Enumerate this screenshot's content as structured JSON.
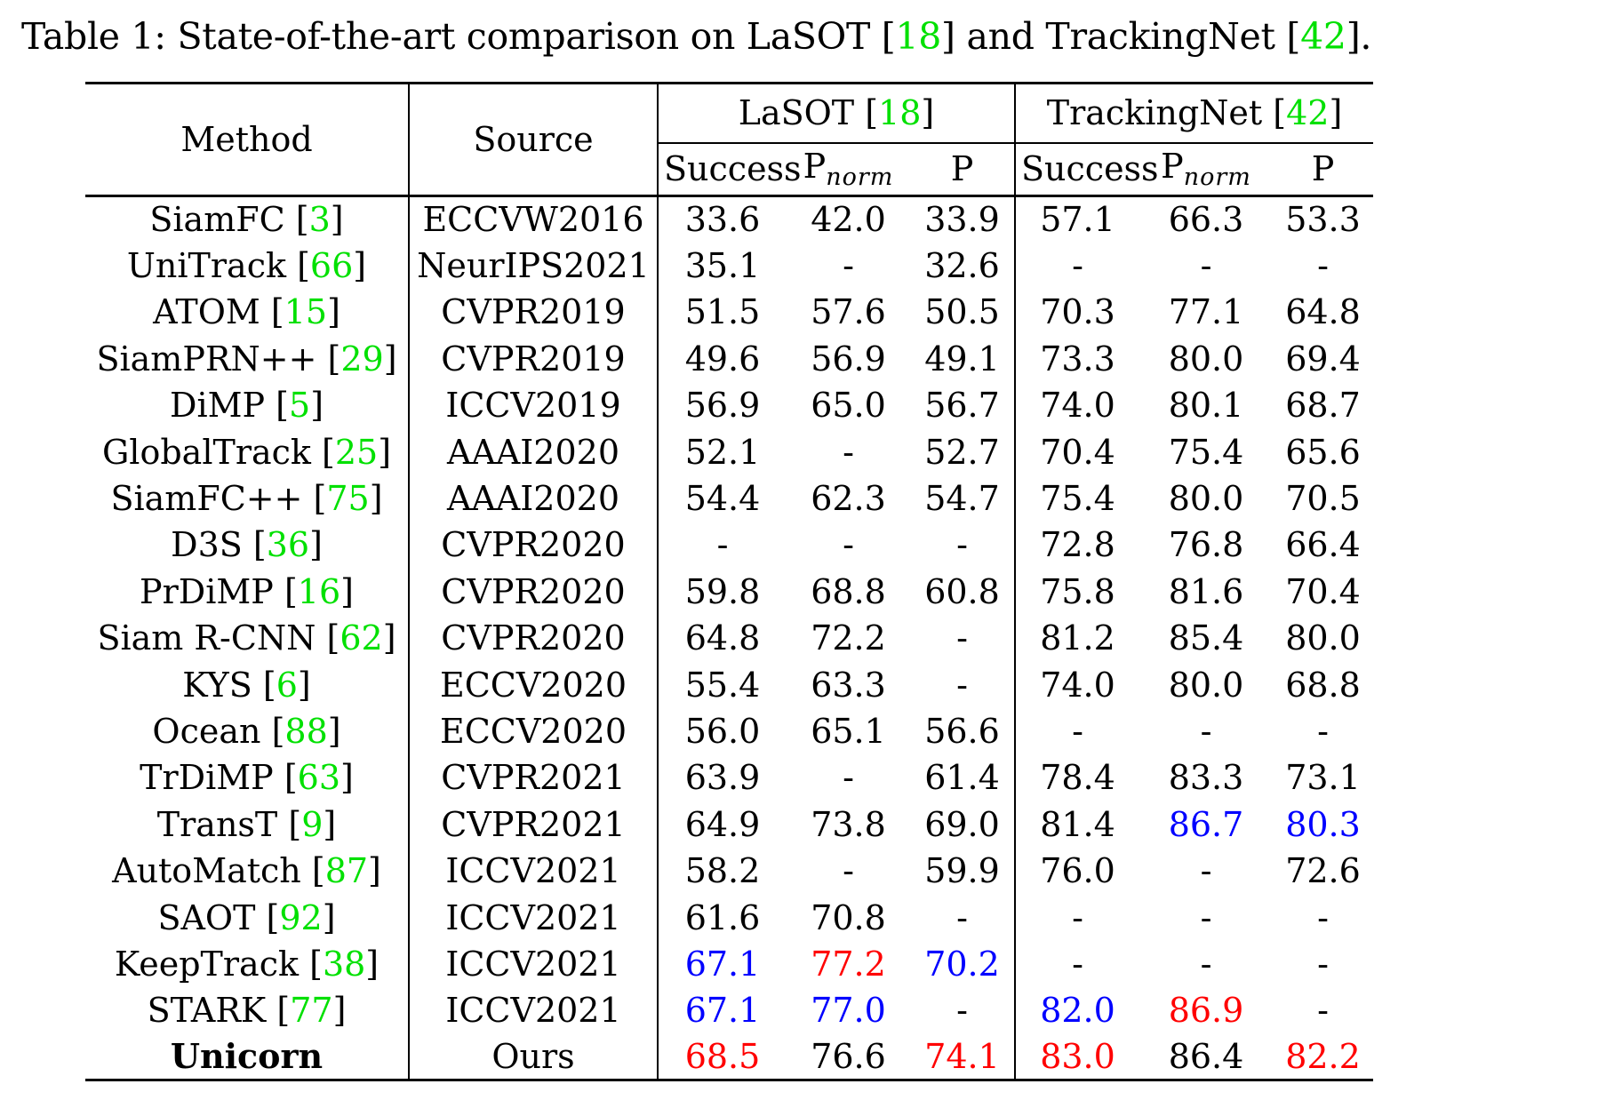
{
  "caption": {
    "prefix": "Table 1: State-of-the-art comparison on LaSOT ",
    "ref1_open": "[",
    "ref1": "18",
    "ref1_close": "]",
    "middle": " and TrackingNet ",
    "ref2_open": "[",
    "ref2": "42",
    "ref2_close": "].",
    "full_text": "Table 1: State-of-the-art comparison on LaSOT [18] and TrackingNet [42]."
  },
  "header": {
    "method": "Method",
    "source": "Source",
    "lasot": {
      "name": "LaSOT ",
      "ref": "18"
    },
    "trackingnet": {
      "name": "TrackingNet ",
      "ref": "42"
    },
    "metrics": {
      "success": "Success",
      "pnorm_base": "P",
      "pnorm_sub": "norm",
      "p": "P"
    }
  },
  "colors": {
    "citation": "#00e000",
    "best": "#ff0000",
    "second": "#0000ff"
  },
  "rows": [
    {
      "method": "SiamFC ",
      "ref": "3",
      "source": "ECCVW2016",
      "cells": [
        {
          "v": "33.6"
        },
        {
          "v": "42.0"
        },
        {
          "v": "33.9"
        },
        {
          "v": "57.1"
        },
        {
          "v": "66.3"
        },
        {
          "v": "53.3"
        }
      ]
    },
    {
      "method": "UniTrack ",
      "ref": "66",
      "source": "NeurIPS2021",
      "cells": [
        {
          "v": "35.1"
        },
        {
          "v": "-"
        },
        {
          "v": "32.6"
        },
        {
          "v": "-"
        },
        {
          "v": "-"
        },
        {
          "v": "-"
        }
      ]
    },
    {
      "method": "ATOM ",
      "ref": "15",
      "source": "CVPR2019",
      "cells": [
        {
          "v": "51.5"
        },
        {
          "v": "57.6"
        },
        {
          "v": "50.5"
        },
        {
          "v": "70.3"
        },
        {
          "v": "77.1"
        },
        {
          "v": "64.8"
        }
      ]
    },
    {
      "method": "SiamPRN++ ",
      "ref": "29",
      "source": "CVPR2019",
      "cells": [
        {
          "v": "49.6"
        },
        {
          "v": "56.9"
        },
        {
          "v": "49.1"
        },
        {
          "v": "73.3"
        },
        {
          "v": "80.0"
        },
        {
          "v": "69.4"
        }
      ]
    },
    {
      "method": "DiMP ",
      "ref": "5",
      "source": "ICCV2019",
      "cells": [
        {
          "v": "56.9"
        },
        {
          "v": "65.0"
        },
        {
          "v": "56.7"
        },
        {
          "v": "74.0"
        },
        {
          "v": "80.1"
        },
        {
          "v": "68.7"
        }
      ]
    },
    {
      "method": "GlobalTrack ",
      "ref": "25",
      "source": "AAAI2020",
      "cells": [
        {
          "v": "52.1"
        },
        {
          "v": "-"
        },
        {
          "v": "52.7"
        },
        {
          "v": "70.4"
        },
        {
          "v": "75.4"
        },
        {
          "v": "65.6"
        }
      ]
    },
    {
      "method": "SiamFC++ ",
      "ref": "75",
      "source": "AAAI2020",
      "cells": [
        {
          "v": "54.4"
        },
        {
          "v": "62.3"
        },
        {
          "v": "54.7"
        },
        {
          "v": "75.4"
        },
        {
          "v": "80.0"
        },
        {
          "v": "70.5"
        }
      ]
    },
    {
      "method": "D3S ",
      "ref": "36",
      "source": "CVPR2020",
      "cells": [
        {
          "v": "-"
        },
        {
          "v": "-"
        },
        {
          "v": "-"
        },
        {
          "v": "72.8"
        },
        {
          "v": "76.8"
        },
        {
          "v": "66.4"
        }
      ]
    },
    {
      "method": "PrDiMP ",
      "ref": "16",
      "source": "CVPR2020",
      "cells": [
        {
          "v": "59.8"
        },
        {
          "v": "68.8"
        },
        {
          "v": "60.8"
        },
        {
          "v": "75.8"
        },
        {
          "v": "81.6"
        },
        {
          "v": "70.4"
        }
      ]
    },
    {
      "method": "Siam R-CNN ",
      "ref": "62",
      "source": "CVPR2020",
      "cells": [
        {
          "v": "64.8"
        },
        {
          "v": "72.2"
        },
        {
          "v": "-"
        },
        {
          "v": "81.2"
        },
        {
          "v": "85.4"
        },
        {
          "v": "80.0"
        }
      ]
    },
    {
      "method": "KYS ",
      "ref": "6",
      "source": "ECCV2020",
      "cells": [
        {
          "v": "55.4"
        },
        {
          "v": "63.3"
        },
        {
          "v": "-"
        },
        {
          "v": "74.0"
        },
        {
          "v": "80.0"
        },
        {
          "v": "68.8"
        }
      ]
    },
    {
      "method": "Ocean ",
      "ref": "88",
      "source": "ECCV2020",
      "cells": [
        {
          "v": "56.0"
        },
        {
          "v": "65.1"
        },
        {
          "v": "56.6"
        },
        {
          "v": "-"
        },
        {
          "v": "-"
        },
        {
          "v": "-"
        }
      ]
    },
    {
      "method": "TrDiMP ",
      "ref": "63",
      "source": "CVPR2021",
      "cells": [
        {
          "v": "63.9"
        },
        {
          "v": "-"
        },
        {
          "v": "61.4"
        },
        {
          "v": "78.4"
        },
        {
          "v": "83.3"
        },
        {
          "v": "73.1"
        }
      ]
    },
    {
      "method": "TransT ",
      "ref": "9",
      "source": "CVPR2021",
      "cells": [
        {
          "v": "64.9"
        },
        {
          "v": "73.8"
        },
        {
          "v": "69.0"
        },
        {
          "v": "81.4"
        },
        {
          "v": "86.7",
          "rank": "second"
        },
        {
          "v": "80.3",
          "rank": "second"
        }
      ]
    },
    {
      "method": "AutoMatch ",
      "ref": "87",
      "source": "ICCV2021",
      "cells": [
        {
          "v": "58.2"
        },
        {
          "v": "-"
        },
        {
          "v": "59.9"
        },
        {
          "v": "76.0"
        },
        {
          "v": "-"
        },
        {
          "v": "72.6"
        }
      ]
    },
    {
      "method": "SAOT ",
      "ref": "92",
      "source": "ICCV2021",
      "cells": [
        {
          "v": "61.6"
        },
        {
          "v": "70.8"
        },
        {
          "v": "-"
        },
        {
          "v": "-"
        },
        {
          "v": "-"
        },
        {
          "v": "-"
        }
      ]
    },
    {
      "method": "KeepTrack ",
      "ref": "38",
      "source": "ICCV2021",
      "cells": [
        {
          "v": "67.1",
          "rank": "second"
        },
        {
          "v": "77.2",
          "rank": "best"
        },
        {
          "v": "70.2",
          "rank": "second"
        },
        {
          "v": "-"
        },
        {
          "v": "-"
        },
        {
          "v": "-"
        }
      ]
    },
    {
      "method": "STARK ",
      "ref": "77",
      "source": "ICCV2021",
      "cells": [
        {
          "v": "67.1",
          "rank": "second"
        },
        {
          "v": "77.0",
          "rank": "second"
        },
        {
          "v": "-"
        },
        {
          "v": "82.0",
          "rank": "second"
        },
        {
          "v": "86.9",
          "rank": "best"
        },
        {
          "v": "-"
        }
      ]
    },
    {
      "method": "Unicorn",
      "ref": "",
      "bold": true,
      "source": "Ours",
      "cells": [
        {
          "v": "68.5",
          "rank": "best"
        },
        {
          "v": "76.6"
        },
        {
          "v": "74.1",
          "rank": "best"
        },
        {
          "v": "83.0",
          "rank": "best"
        },
        {
          "v": "86.4"
        },
        {
          "v": "82.2",
          "rank": "best"
        }
      ]
    }
  ]
}
